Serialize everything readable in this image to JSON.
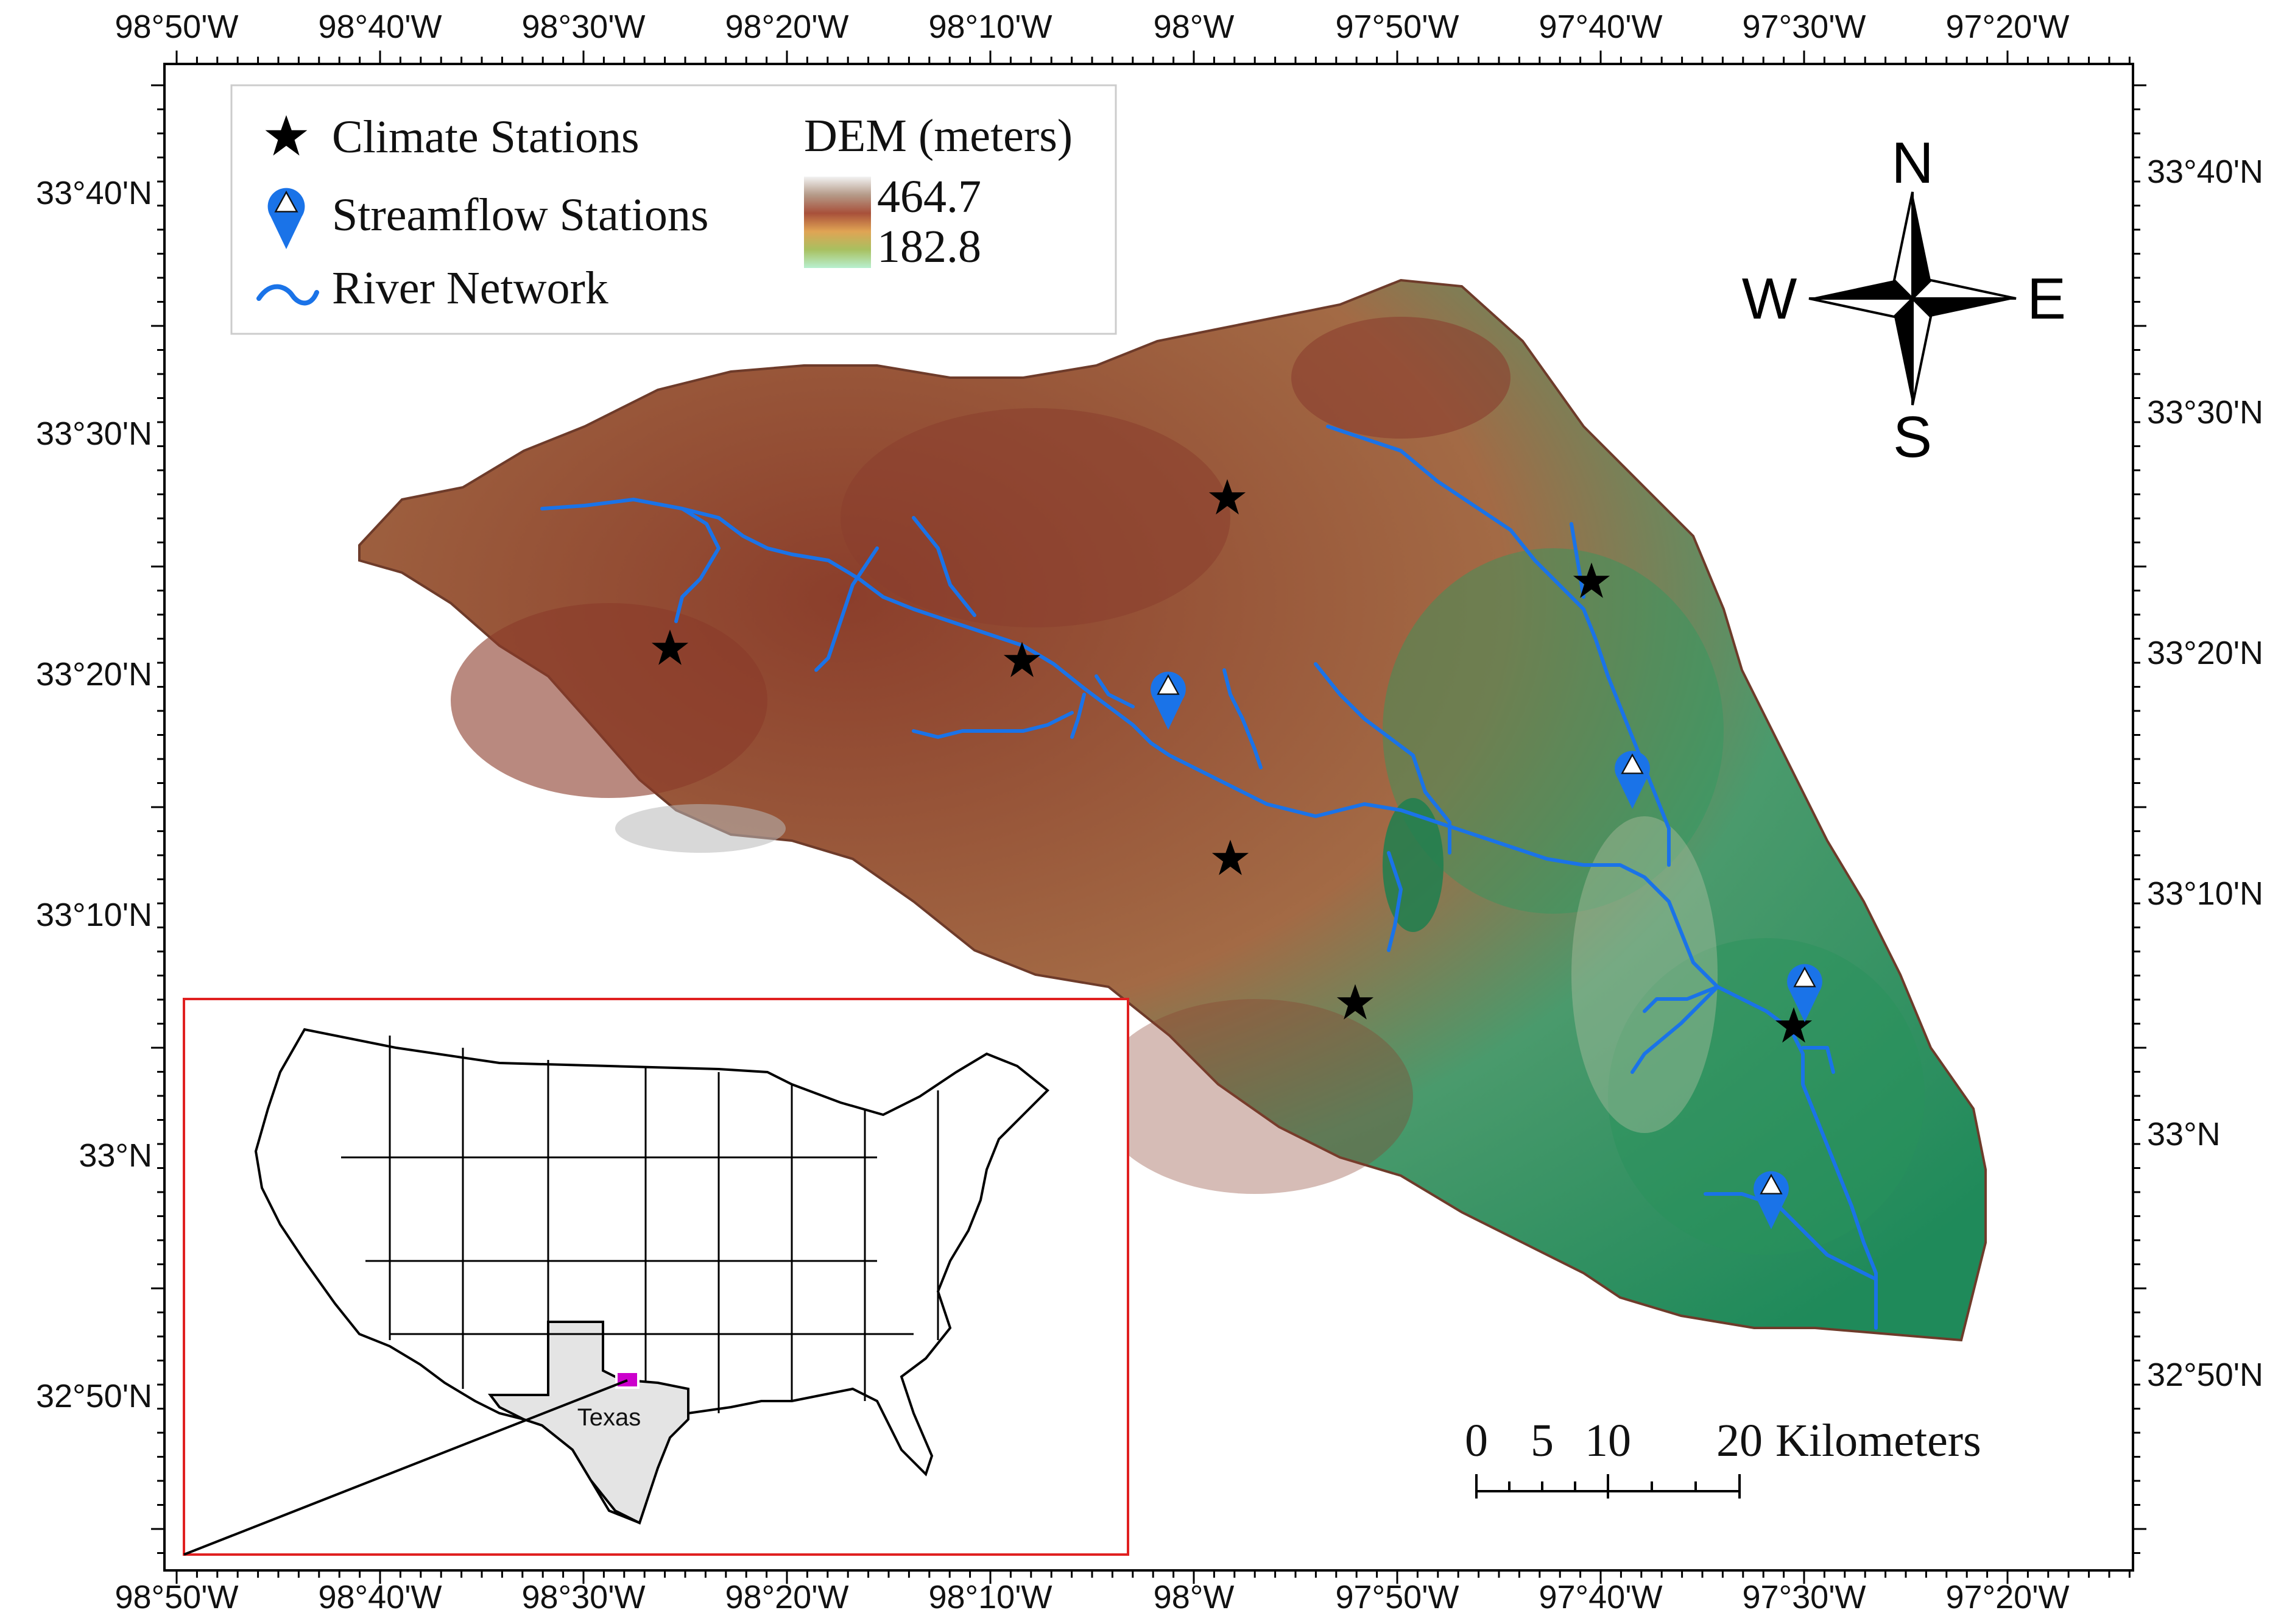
{
  "axes": {
    "top_ticks": [
      "98°50'W",
      "98°40'W",
      "98°30'W",
      "98°20'W",
      "98°10'W",
      "98°W",
      "97°50'W",
      "97°40'W",
      "97°30'W",
      "97°20'W"
    ],
    "bottom_ticks": [
      "98°50'W",
      "98°40'W",
      "98°30'W",
      "98°20'W",
      "98°10'W",
      "98°W",
      "97°50'W",
      "97°40'W",
      "97°30'W",
      "97°20'W"
    ],
    "left_ticks": [
      "33°40'N",
      "33°30'N",
      "33°20'N",
      "33°10'N",
      "33°N",
      "32°50'N"
    ],
    "right_ticks": [
      "33°40'N",
      "33°30'N",
      "33°20'N",
      "33°10'N",
      "33°N",
      "32°50'N"
    ]
  },
  "legend": {
    "climate_label": "Climate Stations",
    "streamflow_label": "Streamflow Stations",
    "river_label": "River Network",
    "dem_title": "DEM (meters)",
    "dem_max": "464.7",
    "dem_min": "182.8"
  },
  "compass": {
    "n": "N",
    "s": "S",
    "e": "E",
    "w": "W"
  },
  "scale_bar": {
    "labels": [
      "0",
      "5",
      "10",
      "20"
    ],
    "unit": "Kilometers"
  },
  "inset": {
    "state_label": "Texas"
  },
  "colors": {
    "river": "#1a73e8",
    "station_marker": "#1a73e8",
    "inset_border": "#e02020",
    "study_area": "#cc00cc",
    "texas_fill": "#e4e4e4"
  }
}
